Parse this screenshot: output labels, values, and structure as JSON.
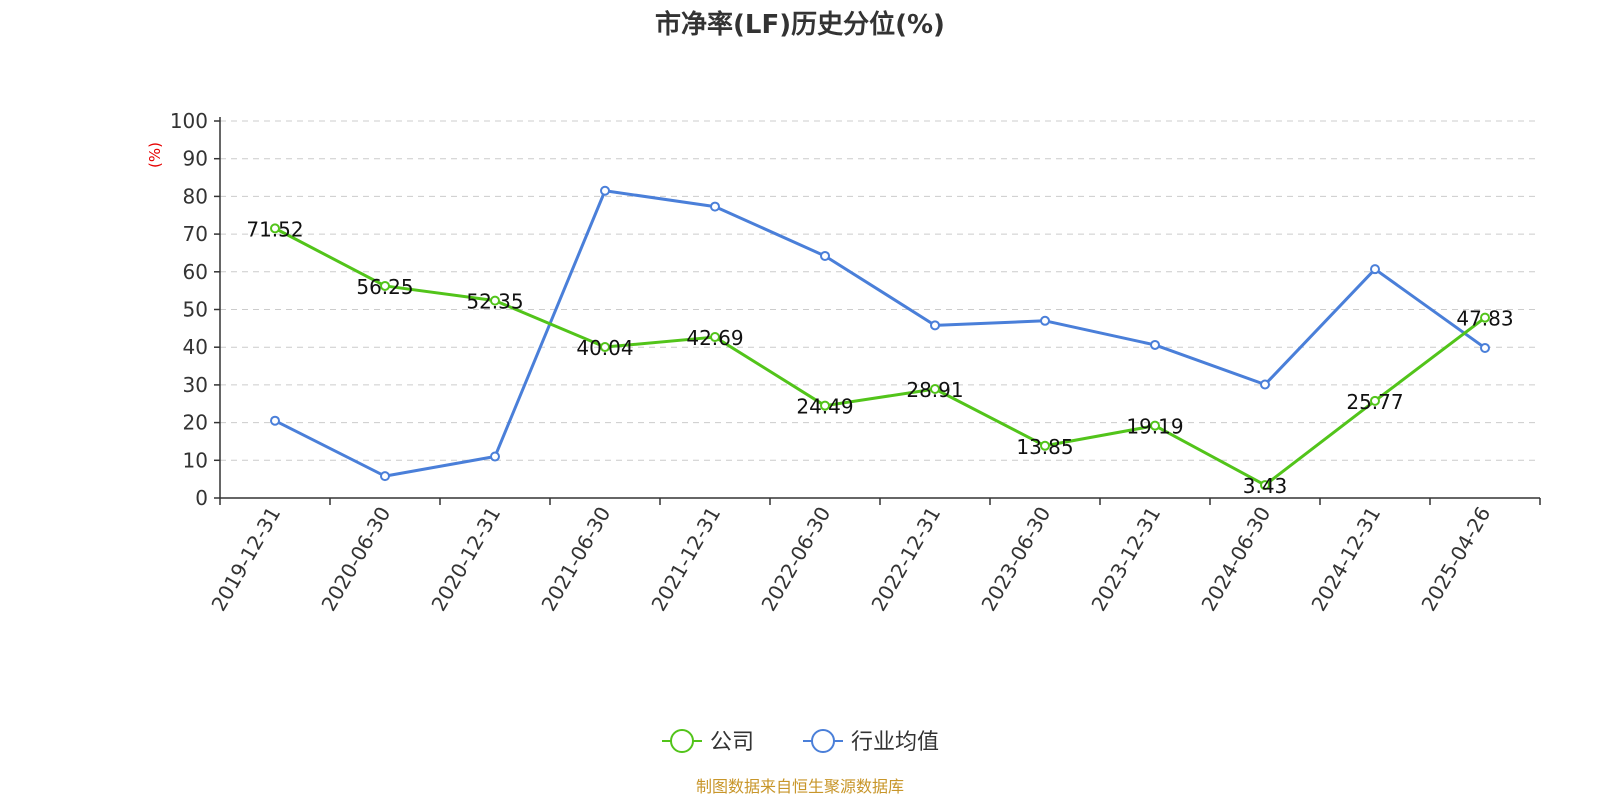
{
  "chart_data": {
    "type": "line",
    "title": "市净率(LF)历史分位(%)",
    "ylabel": "(%)",
    "xlabel": "",
    "ylim": [
      0,
      100
    ],
    "yticks": [
      0,
      10,
      20,
      30,
      40,
      50,
      60,
      70,
      80,
      90,
      100
    ],
    "grid": true,
    "legend_position": "bottom-center",
    "categories": [
      "2019-12-31",
      "2020-06-30",
      "2020-12-31",
      "2021-06-30",
      "2021-12-31",
      "2022-06-30",
      "2022-12-31",
      "2023-06-30",
      "2023-12-31",
      "2024-06-30",
      "2024-12-31",
      "2025-04-26"
    ],
    "series": [
      {
        "name": "公司",
        "color": "#52c41a",
        "values": [
          71.52,
          56.25,
          52.35,
          40.04,
          42.69,
          24.49,
          28.91,
          13.85,
          19.19,
          3.43,
          25.77,
          47.83
        ],
        "data_labels": [
          "71.52",
          "56.25",
          "52.35",
          "40.04",
          "42.69",
          "24.49",
          "28.91",
          "13.85",
          "19.19",
          "3.43",
          "25.77",
          "47.83"
        ]
      },
      {
        "name": "行业均值",
        "color": "#4a7fd9",
        "values": [
          20.5,
          5.8,
          11.0,
          81.5,
          77.3,
          64.2,
          45.8,
          47.0,
          40.6,
          30.1,
          60.7,
          39.8
        ]
      }
    ],
    "source": "制图数据来自恒生聚源数据库"
  }
}
